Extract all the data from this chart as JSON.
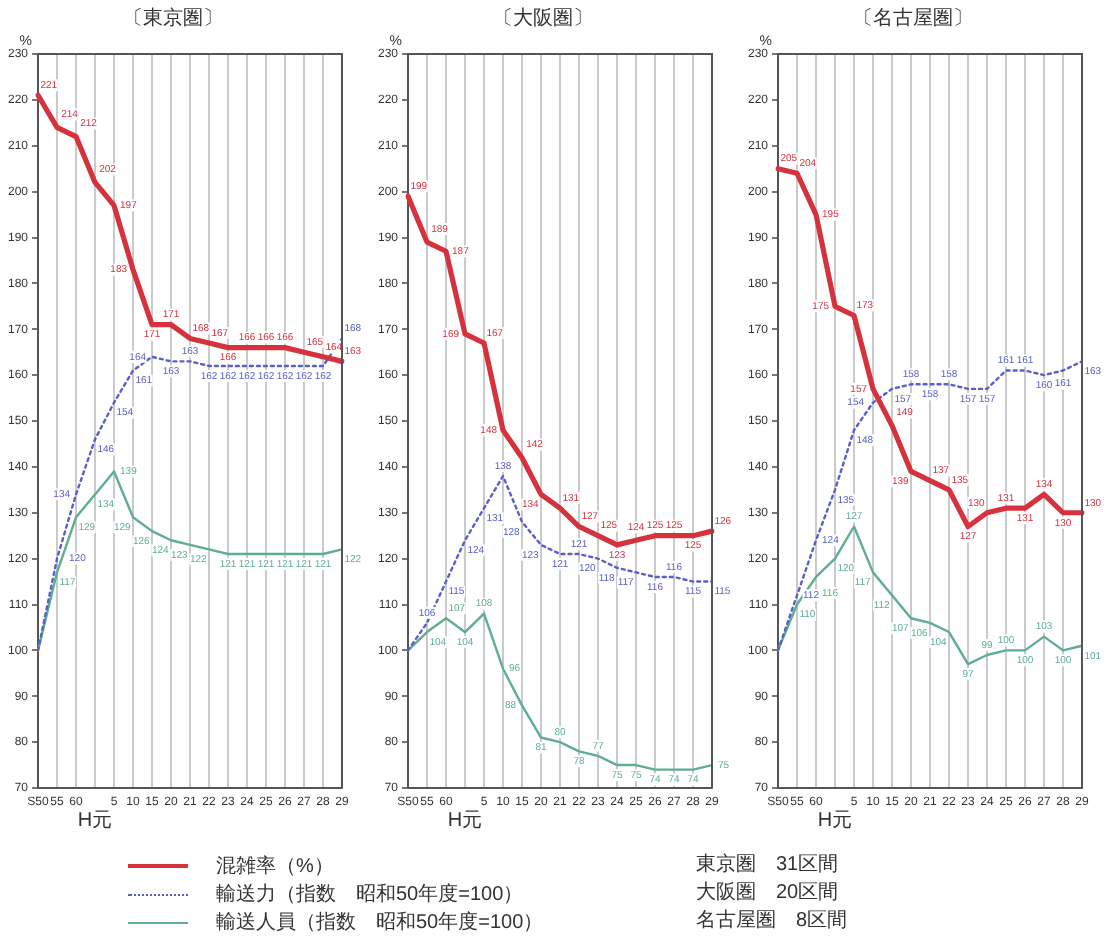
{
  "chart_data": [
    {
      "type": "line",
      "title": "〔東京圏〕",
      "ylabel": "%",
      "categories": [
        "S50",
        "55",
        "60",
        "H元",
        "5",
        "10",
        "15",
        "20",
        "21",
        "22",
        "23",
        "24",
        "25",
        "26",
        "27",
        "28",
        "29"
      ],
      "series": [
        {
          "name": "混雑率（%）",
          "color": "#d6323e",
          "values": [
            221,
            214,
            212,
            202,
            197,
            183,
            171,
            171,
            168,
            167,
            166,
            166,
            166,
            166,
            165,
            164,
            163
          ],
          "value_labels": [
            "221",
            "214",
            "212",
            "202",
            "197",
            "183",
            "171",
            "171",
            "168",
            "167",
            "166",
            "166",
            "166",
            "166",
            "165",
            "164",
            "163"
          ]
        },
        {
          "name": "輸送力（指数　昭和50年度=100）",
          "color": "#5a60c8",
          "line_style": "dotted",
          "values": [
            100,
            120,
            134,
            146,
            154,
            161,
            164,
            163,
            163,
            162,
            162,
            162,
            162,
            162,
            162,
            162,
            168
          ],
          "value_labels": [
            null,
            "120",
            "134",
            "146",
            "154",
            "161",
            "164",
            "163",
            "163",
            "162",
            "162",
            "162",
            "162",
            "162",
            "162",
            "162",
            "168"
          ]
        },
        {
          "name": "輸送人員（指数　昭和50年度=100）",
          "color": "#5fae8e",
          "values": [
            100,
            117,
            129,
            134,
            139,
            129,
            126,
            124,
            123,
            122,
            121,
            121,
            121,
            121,
            121,
            121,
            122
          ],
          "value_labels": [
            null,
            "117",
            "129",
            "134",
            "139",
            "129",
            "126",
            "124",
            "123",
            "122",
            "121",
            "121",
            "121",
            "121",
            "121",
            "121",
            "122"
          ]
        }
      ],
      "ylim": [
        70,
        230
      ],
      "yticks": [
        70,
        80,
        90,
        100,
        110,
        120,
        130,
        140,
        150,
        160,
        170,
        180,
        190,
        200,
        210,
        220,
        230
      ],
      "grid": "x",
      "legend": "bottom",
      "annotations": [
        "東京圏　31区間",
        "大阪圏　20区間",
        "名古屋圏　8区間"
      ]
    },
    {
      "type": "line",
      "title": "〔大阪圏〕",
      "ylabel": "%",
      "categories": [
        "S50",
        "55",
        "60",
        "H元",
        "5",
        "10",
        "15",
        "20",
        "21",
        "22",
        "23",
        "24",
        "25",
        "26",
        "27",
        "28",
        "29"
      ],
      "series": [
        {
          "name": "混雑率（%）",
          "color": "#d6323e",
          "values": [
            199,
            189,
            187,
            169,
            167,
            148,
            142,
            134,
            131,
            127,
            125,
            123,
            124,
            125,
            125,
            125,
            126
          ],
          "value_labels": [
            "199",
            "189",
            "187",
            "169",
            "167",
            "148",
            "142",
            "134",
            "131",
            "127",
            "125",
            "123",
            "124",
            "125",
            "125",
            "125",
            "126"
          ]
        },
        {
          "name": "輸送力（指数　昭和50年度=100）",
          "color": "#5a60c8",
          "line_style": "dotted",
          "values": [
            100,
            106,
            115,
            124,
            131,
            138,
            128,
            123,
            121,
            121,
            120,
            118,
            117,
            116,
            116,
            115,
            115
          ],
          "value_labels": [
            null,
            "106",
            "115",
            "124",
            "131",
            "138",
            "128",
            "123",
            "121",
            "121",
            "120",
            "118",
            "117",
            "116",
            "116",
            "115",
            "115"
          ]
        },
        {
          "name": "輸送人員（指数　昭和50年度=100）",
          "color": "#5fae8e",
          "values": [
            100,
            104,
            107,
            104,
            108,
            96,
            88,
            81,
            80,
            78,
            77,
            75,
            75,
            74,
            74,
            74,
            75
          ],
          "value_labels": [
            null,
            "104",
            "107",
            "104",
            "108",
            "96",
            "88",
            "81",
            "80",
            "78",
            "77",
            "75",
            "75",
            "74",
            "74",
            "74",
            "75"
          ]
        }
      ],
      "ylim": [
        70,
        230
      ],
      "yticks": [
        70,
        80,
        90,
        100,
        110,
        120,
        130,
        140,
        150,
        160,
        170,
        180,
        190,
        200,
        210,
        220,
        230
      ],
      "grid": "x",
      "legend": "bottom"
    },
    {
      "type": "line",
      "title": "〔名古屋圏〕",
      "ylabel": "%",
      "categories": [
        "S50",
        "55",
        "60",
        "H元",
        "5",
        "10",
        "15",
        "20",
        "21",
        "22",
        "23",
        "24",
        "25",
        "26",
        "27",
        "28",
        "29"
      ],
      "series": [
        {
          "name": "混雑率（%）",
          "color": "#d6323e",
          "values": [
            205,
            204,
            195,
            175,
            173,
            157,
            149,
            139,
            137,
            135,
            127,
            130,
            131,
            131,
            134,
            130,
            130
          ],
          "value_labels": [
            "205",
            "204",
            "195",
            "175",
            "173",
            "157",
            "149",
            "139",
            "137",
            "135",
            "127",
            "130",
            "131",
            "131",
            "134",
            "130",
            "130"
          ]
        },
        {
          "name": "輸送力（指数　昭和50年度=100）",
          "color": "#5a60c8",
          "line_style": "dotted",
          "values": [
            100,
            112,
            124,
            135,
            148,
            154,
            157,
            158,
            158,
            158,
            157,
            157,
            161,
            161,
            160,
            161,
            163
          ],
          "value_labels": [
            null,
            "112",
            "124",
            "135",
            "148",
            "154",
            "157",
            "158",
            "158",
            "158",
            "157",
            "157",
            "161",
            "161",
            "160",
            "161",
            "163"
          ]
        },
        {
          "name": "輸送人員（指数　昭和50年度=100）",
          "color": "#5fae8e",
          "values": [
            100,
            110,
            116,
            120,
            127,
            117,
            112,
            107,
            106,
            104,
            97,
            99,
            100,
            100,
            103,
            100,
            101
          ],
          "value_labels": [
            null,
            "110",
            "116",
            "120",
            "127",
            "117",
            "112",
            "107",
            "106",
            "104",
            "97",
            "99",
            "100",
            "100",
            "103",
            "100",
            "101"
          ]
        }
      ],
      "ylim": [
        70,
        230
      ],
      "yticks": [
        70,
        80,
        90,
        100,
        110,
        120,
        130,
        140,
        150,
        160,
        170,
        180,
        190,
        200,
        210,
        220,
        230
      ],
      "grid": "x",
      "legend": "bottom"
    }
  ]
}
